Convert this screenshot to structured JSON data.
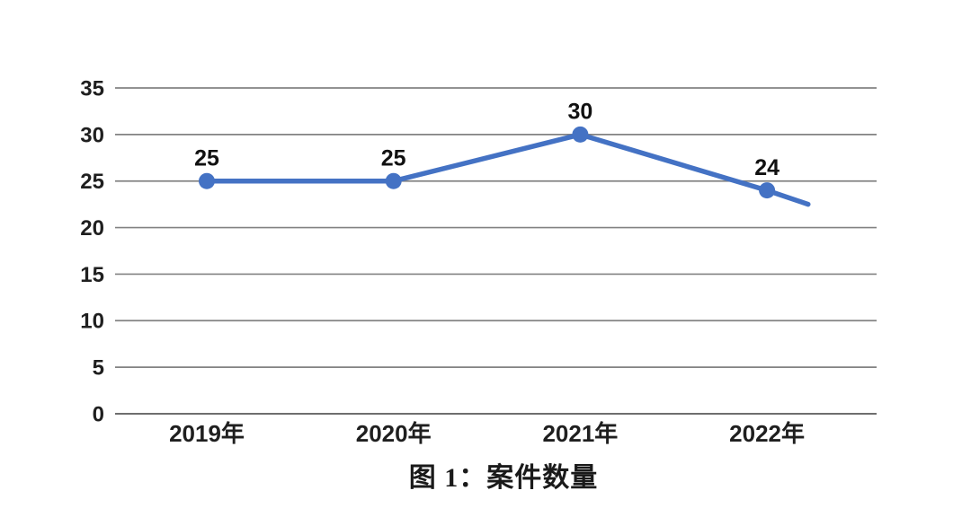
{
  "caption": "图 1：案件数量",
  "colors": {
    "line": "#4472C4",
    "marker": "#4472C4",
    "gridline": "#828282",
    "baseline": "#595959",
    "axis_text": "#1f1f1f",
    "data_label_text": "#111111"
  },
  "chart_data": {
    "type": "line",
    "title": "图 1：案件数量",
    "categories": [
      "2019年",
      "2020年",
      "2021年",
      "2022年"
    ],
    "series": [
      {
        "name": "案件数量",
        "values": [
          25,
          25,
          30,
          24
        ]
      }
    ],
    "data_labels": [
      "25",
      "25",
      "30",
      "24"
    ],
    "y_ticks": [
      0,
      5,
      10,
      15,
      20,
      25,
      30,
      35
    ],
    "ylim": [
      0,
      35
    ],
    "grid": true,
    "legend": "none",
    "xlabel": "",
    "ylabel": "",
    "truncated_trailing_segment": {
      "note": "line continues past last labeled point and is cut off",
      "value_at_cutoff": 22.5,
      "fraction_of_category_gap": 0.22
    }
  }
}
